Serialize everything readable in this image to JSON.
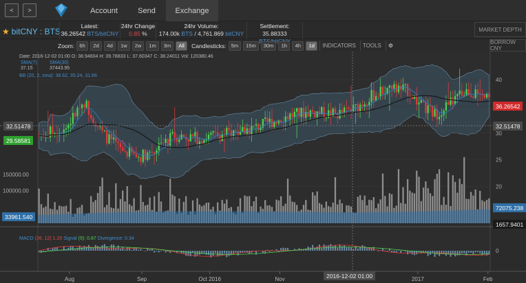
{
  "nav": {
    "back_icon": "chevron-left-icon",
    "forward_icon": "chevron-right-icon",
    "back_label": "<",
    "forward_label": ">",
    "tabs": [
      {
        "label": "Account"
      },
      {
        "label": "Send"
      },
      {
        "label": "Exchange"
      }
    ],
    "logo_icon": "bitshares-logo-icon"
  },
  "market": {
    "pair": "bitCNY : BTS",
    "favorite_icon": "star-icon",
    "latest": {
      "label": "Latest:",
      "value": "36.26542",
      "unit": "BTS/bitCNY"
    },
    "change": {
      "label": "24hr Change",
      "value": "0.85",
      "unit": "%"
    },
    "volume": {
      "label": "24hr Volume:",
      "value": "174.00k",
      "unit1": "BTS",
      "sep": "/",
      "value2": "4,761.869",
      "unit2": "bitCNY"
    },
    "settlement": {
      "label": "Settlement:",
      "value": "35.88333",
      "unit": "BTS/bitCNY"
    },
    "market_depth": "MARKET DEPTH",
    "borrow": "BORROW CNY"
  },
  "toolbar": {
    "zoom_label": "Zoom:",
    "zoom_options": [
      "6h",
      "2d",
      "4d",
      "1w",
      "2w",
      "1m",
      "3m",
      "All"
    ],
    "zoom_selected": "All",
    "candle_label": "Candlesticks:",
    "candle_options": [
      "5m",
      "15m",
      "30m",
      "1h",
      "4h",
      "1d"
    ],
    "candle_selected": "1d",
    "indicators": "INDICATORS",
    "tools": "TOOLS",
    "settings_icon": "gear-icon"
  },
  "chart_info": {
    "ohlc": "Date: 2016-12-02 01:00 O: 38.94604 H: 39.78833 L: 37.60347 C: 38.24011 Vol: 120380.46",
    "sma7_label": "SMA(7)",
    "sma7_value": "37.15",
    "sma30_label": "SMA(30)",
    "sma30_value": "37443.95",
    "bb": "BB (20, 2, sma): 38.62, 35.24, 31.86",
    "macd_name": "MACD",
    "macd_params": "(26, 12)",
    "macd_value": "1.20",
    "signal_label": "Signal",
    "signal_value": "(9): 0.87",
    "divergence": "Divergence: 0.34"
  },
  "price_tags": {
    "last": "36.26542",
    "crosshair": "32.51478",
    "crosshair_right": "32.51478",
    "green": "29.58581",
    "vol_right": "72075.238",
    "vol_left": "33961.540",
    "vol_low": "1657.9401",
    "date_crosshair": "2016-12-02 01:00"
  },
  "chart_data": {
    "type": "candlestick",
    "title": "",
    "price_axis": {
      "ticks": [
        20,
        25,
        30,
        35,
        40
      ],
      "range": [
        18,
        44
      ]
    },
    "volume_axis": {
      "ticks": [
        "100000.00",
        "150000.00"
      ],
      "range": [
        0,
        190000
      ]
    },
    "x_ticks": [
      "Aug",
      "Sep",
      "Oct 2016",
      "Nov",
      "2017",
      "Feb"
    ],
    "macd_ticks": [
      0
    ],
    "colors": {
      "up": "#4fd04f",
      "down": "#e03a3a",
      "bb": "#4a6f8c",
      "sma7": "#2c6ea0",
      "sma30": "#1a1a1a",
      "volume_bar": "#a0a0a0",
      "vol_area": "#2f6fa6"
    },
    "price_anchors": [
      [
        0,
        29.5
      ],
      [
        0.06,
        31
      ],
      [
        0.1,
        36
      ],
      [
        0.14,
        30
      ],
      [
        0.18,
        27
      ],
      [
        0.22,
        25.5
      ],
      [
        0.26,
        27
      ],
      [
        0.3,
        29.5
      ],
      [
        0.36,
        29
      ],
      [
        0.42,
        30
      ],
      [
        0.48,
        31
      ],
      [
        0.54,
        33
      ],
      [
        0.6,
        34
      ],
      [
        0.66,
        33.5
      ],
      [
        0.7,
        34.5
      ],
      [
        0.74,
        37
      ],
      [
        0.78,
        38.5
      ],
      [
        0.82,
        38
      ],
      [
        0.85,
        35
      ],
      [
        0.88,
        33.5
      ],
      [
        0.92,
        36
      ],
      [
        0.95,
        38
      ],
      [
        1,
        36.3
      ]
    ],
    "volume_anchors": [
      [
        0,
        60000
      ],
      [
        0.08,
        40000
      ],
      [
        0.18,
        110000
      ],
      [
        0.28,
        70000
      ],
      [
        0.38,
        60000
      ],
      [
        0.5,
        70000
      ],
      [
        0.6,
        80000
      ],
      [
        0.7,
        60000
      ],
      [
        0.8,
        110000
      ],
      [
        0.88,
        140000
      ],
      [
        1,
        70000
      ]
    ],
    "candle_count": 200
  }
}
